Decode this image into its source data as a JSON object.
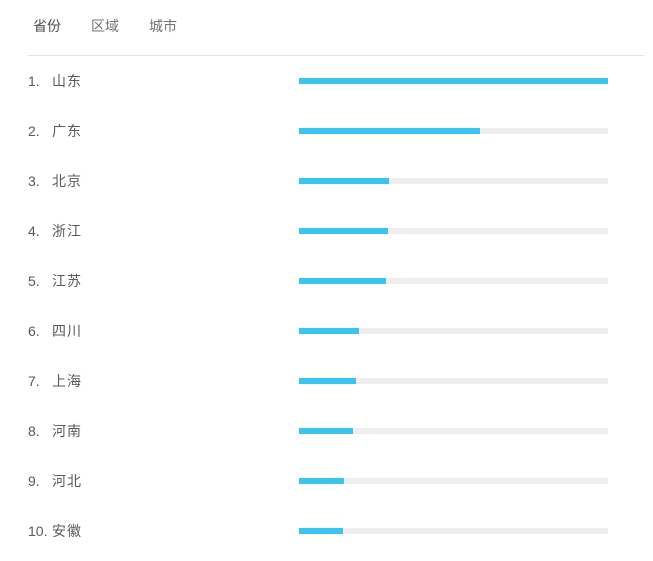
{
  "tabs": {
    "items": [
      {
        "label": "省份",
        "active": true
      },
      {
        "label": "区域",
        "active": false
      },
      {
        "label": "城市",
        "active": false
      }
    ]
  },
  "colors": {
    "bar_fill": "#3ac3ee",
    "bar_track": "#eeeeee",
    "divider": "#e4e4e4",
    "row_text": "#595959",
    "tab_text": "#737373",
    "tab_text_active": "#4d4d4d"
  },
  "rows": [
    {
      "rank": "1.",
      "name": "山东",
      "percent": 100
    },
    {
      "rank": "2.",
      "name": "广东",
      "percent": 58.6
    },
    {
      "rank": "3.",
      "name": "北京",
      "percent": 29.1
    },
    {
      "rank": "4.",
      "name": "浙江",
      "percent": 28.8
    },
    {
      "rank": "5.",
      "name": "江苏",
      "percent": 28.2
    },
    {
      "rank": "6.",
      "name": "四川",
      "percent": 19.4
    },
    {
      "rank": "7.",
      "name": "上海",
      "percent": 18.4
    },
    {
      "rank": "8.",
      "name": "河南",
      "percent": 17.5
    },
    {
      "rank": "9.",
      "name": "河北",
      "percent": 14.6
    },
    {
      "rank": "10.",
      "name": "安徽",
      "percent": 14.2
    }
  ],
  "chart_data": {
    "type": "bar",
    "orientation": "horizontal",
    "title": "",
    "xlabel": "",
    "ylabel": "",
    "categories": [
      "山东",
      "广东",
      "北京",
      "浙江",
      "江苏",
      "四川",
      "上海",
      "河南",
      "河北",
      "安徽"
    ],
    "values": [
      100,
      58.6,
      29.1,
      28.8,
      28.2,
      19.4,
      18.4,
      17.5,
      14.6,
      14.2
    ],
    "values_unit": "percent_of_longest_bar",
    "xlim": [
      0,
      100
    ],
    "grid": false,
    "legend": false,
    "bar_color": "#3ac3ee",
    "track_color": "#eeeeee"
  }
}
